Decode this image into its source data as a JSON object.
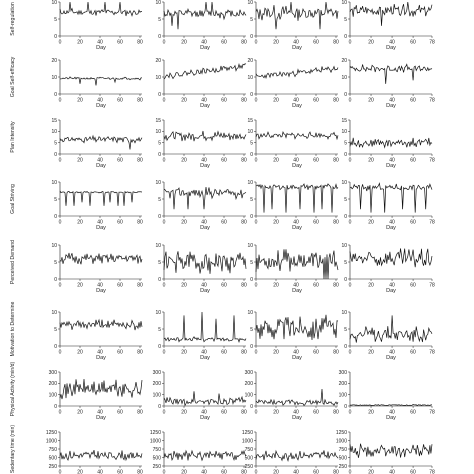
{
  "figure": {
    "x_axis_label": "Day",
    "panel_columns": 4,
    "rows": [
      {
        "row_label": "Self-regulation"
      },
      {
        "row_label": "Goal Self-efficacy"
      },
      {
        "row_label": "Plan Intensity"
      },
      {
        "row_label": "Goal Striving"
      },
      {
        "row_label": "Perceived Demand"
      },
      {
        "row_label": "Motivation to Determine"
      },
      {
        "row_label": "Physical Activity (min/d)"
      },
      {
        "row_label": "Sedentary time (min)"
      }
    ]
  },
  "chart_data": {
    "type": "line",
    "layout": "small-multiples grid, 8 rows x 4 columns (participants), daily time series",
    "xlabel": "Day",
    "rows": [
      {
        "variable": "Self-regulation",
        "ylim": [
          0,
          10
        ],
        "yticks": [
          0,
          5,
          10
        ],
        "xticks": [
          [
            0,
            20,
            40,
            60,
            80
          ],
          [
            0,
            20,
            40,
            60,
            80
          ],
          [
            0,
            20,
            40,
            60,
            80
          ],
          [
            0,
            20,
            40,
            60,
            78
          ]
        ],
        "xlabel_shown": true,
        "panels": [
          {
            "days": 82,
            "mean": 7.0,
            "amp": 1.2,
            "period": 6,
            "seed": 11,
            "spikes": [
              [
                10,
                10
              ],
              [
                28,
                10
              ],
              [
                45,
                10
              ],
              [
                60,
                10
              ]
            ]
          },
          {
            "days": 82,
            "mean": 6.6,
            "amp": 1.6,
            "period": 4,
            "seed": 12,
            "spikes": [
              [
                8,
                3
              ],
              [
                14,
                2
              ],
              [
                42,
                10
              ],
              [
                48,
                10
              ]
            ]
          },
          {
            "days": 82,
            "mean": 6.8,
            "amp": 2.4,
            "period": 3,
            "seed": 13,
            "spikes": [
              [
                20,
                2
              ],
              [
                35,
                10
              ],
              [
                64,
                2
              ],
              [
                70,
                10
              ]
            ]
          },
          {
            "days": 78,
            "mean": 7.4,
            "amp": 2.0,
            "period": 3,
            "seed": 14,
            "spikes": [
              [
                30,
                3
              ],
              [
                55,
                10
              ]
            ]
          }
        ]
      },
      {
        "variable": "Goal Self-efficacy",
        "ylim": [
          0,
          20
        ],
        "yticks": [
          0,
          10,
          20
        ],
        "xticks": [
          [
            0,
            20,
            40,
            60,
            80
          ],
          [
            0,
            20,
            40,
            60,
            80
          ],
          [
            0,
            20,
            40,
            60,
            80
          ],
          [
            0,
            20,
            40,
            60,
            78
          ]
        ],
        "xlabel_shown": true,
        "panels": [
          {
            "days": 82,
            "mean": 9.2,
            "amp": 0.9,
            "period": 5,
            "seed": 21,
            "spikes": [
              [
                20,
                6
              ],
              [
                36,
                5
              ],
              [
                55,
                7
              ]
            ]
          },
          {
            "days": 82,
            "mean": 13.5,
            "amp": 2.2,
            "period": 3,
            "seed": 22,
            "trend": [
              -3,
              3
            ]
          },
          {
            "days": 82,
            "mean": 12.0,
            "amp": 2.2,
            "period": 3,
            "seed": 23,
            "trend": [
              -2,
              3
            ]
          },
          {
            "days": 78,
            "mean": 15.0,
            "amp": 2.6,
            "period": 3,
            "seed": 24,
            "spikes": [
              [
                34,
                6
              ],
              [
                60,
                8
              ]
            ]
          }
        ]
      },
      {
        "variable": "Plan Intensity",
        "ylim": [
          0,
          15
        ],
        "yticks": [
          0,
          5,
          10,
          15
        ],
        "xticks": [
          [
            0,
            20,
            40,
            60,
            80
          ],
          [
            0,
            20,
            40,
            60,
            80
          ],
          [
            0,
            20,
            40,
            60,
            80
          ],
          [
            0,
            20,
            40,
            60,
            78
          ]
        ],
        "xlabel_shown": true,
        "panels": [
          {
            "days": 82,
            "mean": 6.5,
            "amp": 1.6,
            "period": 3,
            "seed": 31,
            "spikes": [
              [
                70,
                2
              ]
            ]
          },
          {
            "days": 82,
            "mean": 8.0,
            "amp": 2.4,
            "period": 3,
            "seed": 32
          },
          {
            "days": 82,
            "mean": 8.2,
            "amp": 1.6,
            "period": 3,
            "seed": 33
          },
          {
            "days": 78,
            "mean": 5.0,
            "amp": 2.2,
            "period": 3,
            "seed": 34
          }
        ]
      },
      {
        "variable": "Goal Striving",
        "ylim": [
          0,
          10
        ],
        "yticks": [
          0,
          5,
          10
        ],
        "xticks": [
          [
            0,
            20,
            40,
            60,
            80
          ],
          [
            0,
            20,
            40,
            60,
            80
          ],
          [
            0,
            20,
            40,
            60,
            80
          ],
          [
            0,
            20,
            40,
            60,
            78
          ]
        ],
        "xlabel_shown": true,
        "panels": [
          {
            "days": 82,
            "mean": 7.0,
            "amp": 0.4,
            "period": 9,
            "seed": 41,
            "spikes": [
              [
                6,
                3
              ],
              [
                14,
                3
              ],
              [
                22,
                4
              ],
              [
                30,
                3
              ],
              [
                44,
                3
              ],
              [
                50,
                4
              ],
              [
                58,
                3
              ],
              [
                64,
                3
              ],
              [
                72,
                4
              ]
            ]
          },
          {
            "days": 82,
            "mean": 6.8,
            "amp": 1.8,
            "period": 3,
            "seed": 42,
            "spikes": [
              [
                10,
                2
              ],
              [
                24,
                2
              ],
              [
                40,
                2
              ]
            ]
          },
          {
            "days": 82,
            "mean": 8.6,
            "amp": 1.0,
            "period": 4,
            "seed": 43,
            "spikes": [
              [
                8,
                1
              ],
              [
                16,
                2
              ],
              [
                30,
                1
              ],
              [
                44,
                2
              ],
              [
                58,
                1
              ],
              [
                66,
                2
              ],
              [
                76,
                1
              ]
            ]
          },
          {
            "days": 78,
            "mean": 8.4,
            "amp": 1.2,
            "period": 4,
            "seed": 44,
            "spikes": [
              [
                10,
                2
              ],
              [
                20,
                1
              ],
              [
                33,
                1
              ],
              [
                50,
                2
              ],
              [
                62,
                1
              ],
              [
                72,
                2
              ]
            ]
          }
        ]
      },
      {
        "variable": "Perceived Demand",
        "ylim": [
          0,
          10
        ],
        "yticks": [
          0,
          5,
          10
        ],
        "xticks": [
          [
            0,
            20,
            40,
            60,
            80
          ],
          [
            0,
            20,
            40,
            60,
            80
          ],
          [
            0,
            20,
            40,
            60,
            80
          ],
          [
            0,
            20,
            40,
            60,
            78
          ]
        ],
        "xlabel_shown": true,
        "panels": [
          {
            "days": 82,
            "mean": 6.0,
            "amp": 1.8,
            "period": 3,
            "seed": 51
          },
          {
            "days": 82,
            "mean": 5.0,
            "amp": 3.6,
            "period": 2,
            "seed": 52
          },
          {
            "days": 82,
            "mean": 5.4,
            "amp": 3.4,
            "period": 2,
            "seed": 53,
            "spikes": [
              [
                68,
                0
              ],
              [
                70,
                0
              ],
              [
                72,
                0
              ]
            ]
          },
          {
            "days": 78,
            "mean": 6.0,
            "amp": 3.0,
            "period": 2,
            "seed": 54
          }
        ]
      },
      {
        "variable": "Motivation to Determine",
        "ylim": [
          0,
          10
        ],
        "yticks": [
          0,
          5,
          10
        ],
        "xticks": [
          [
            0,
            20,
            40,
            60,
            80
          ],
          [
            0,
            20,
            40,
            60,
            80
          ],
          [
            0,
            20,
            40,
            60,
            80
          ],
          [
            0,
            20,
            40,
            60,
            78
          ]
        ],
        "xlabel_shown": true,
        "panels": [
          {
            "days": 82,
            "mean": 6.2,
            "amp": 1.6,
            "period": 3,
            "seed": 61
          },
          {
            "days": 82,
            "mean": 2.0,
            "amp": 0.8,
            "period": 5,
            "seed": 62,
            "spikes": [
              [
                20,
                9
              ],
              [
                38,
                10
              ],
              [
                52,
                8
              ],
              [
                70,
                9
              ]
            ]
          },
          {
            "days": 82,
            "mean": 5.5,
            "amp": 3.8,
            "period": 2,
            "seed": 63
          },
          {
            "days": 78,
            "mean": 3.5,
            "amp": 2.6,
            "period": 3,
            "seed": 64,
            "spikes": [
              [
                40,
                9
              ]
            ]
          }
        ]
      },
      {
        "variable": "Physical Activity (min/d)",
        "ylim": [
          0,
          300
        ],
        "yticks": [
          0,
          100,
          200,
          300
        ],
        "xticks": [
          [
            0,
            20,
            40,
            60,
            80
          ],
          [
            0,
            20,
            40,
            60,
            80
          ],
          [
            0,
            20,
            40,
            60,
            80
          ],
          [
            0,
            20,
            40,
            60,
            78
          ]
        ],
        "xlabel_shown": true,
        "panels": [
          {
            "days": 82,
            "mean": 150,
            "amp": 90,
            "period": 2,
            "seed": 71
          },
          {
            "days": 82,
            "mean": 40,
            "amp": 40,
            "period": 3,
            "seed": 72,
            "spikes": [
              [
                30,
                130
              ],
              [
                55,
                110
              ]
            ]
          },
          {
            "days": 82,
            "mean": 30,
            "amp": 30,
            "period": 3,
            "seed": 73,
            "spikes": [
              [
                66,
                150
              ]
            ]
          },
          {
            "days": 78,
            "mean": 8,
            "amp": 6,
            "period": 4,
            "seed": 74
          }
        ]
      },
      {
        "variable": "Sedentary time (min)",
        "ylim": [
          250,
          1250
        ],
        "yticks": [
          250,
          500,
          750,
          1000,
          1250
        ],
        "xticks": [
          [
            0,
            20,
            40,
            60,
            80
          ],
          [
            0,
            20,
            40,
            60,
            80
          ],
          [
            0,
            20,
            40,
            60,
            80
          ],
          [
            0,
            20,
            40,
            60,
            78
          ]
        ],
        "xlabel_shown": false,
        "panels": [
          {
            "days": 82,
            "mean": 560,
            "amp": 160,
            "period": 2,
            "seed": 81
          },
          {
            "days": 82,
            "mean": 560,
            "amp": 150,
            "period": 2,
            "seed": 82
          },
          {
            "days": 82,
            "mean": 560,
            "amp": 150,
            "period": 2,
            "seed": 83
          },
          {
            "days": 78,
            "mean": 700,
            "amp": 220,
            "period": 2,
            "seed": 84
          }
        ]
      }
    ]
  }
}
